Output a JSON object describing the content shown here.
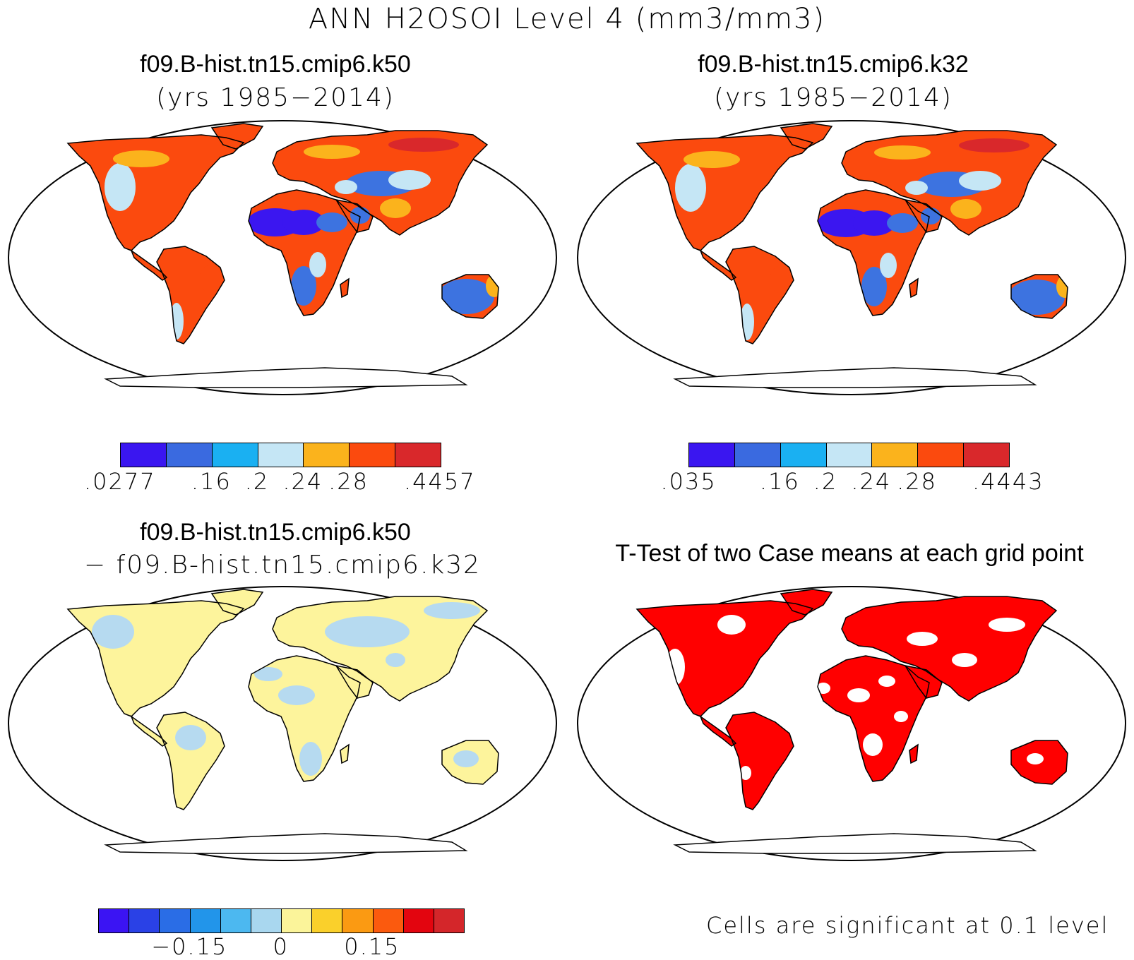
{
  "title": "ANN H2OSOI Level 4 (mm3/mm3)",
  "panels": {
    "top_left": {
      "title": "f09.B-hist.tn15.cmip6.k50",
      "subtitle": "(yrs 1985−2014)"
    },
    "top_right": {
      "title": "f09.B-hist.tn15.cmip6.k32",
      "subtitle": "(yrs 1985−2014)"
    },
    "bottom_left": {
      "title": "f09.B-hist.tn15.cmip6.k50",
      "subtitle": "− f09.B-hist.tn15.cmip6.k32"
    },
    "bottom_right": {
      "title": "T-Test of two Case means at each grid point",
      "note": "Cells are significant at 0.1 level"
    }
  },
  "colorbars": {
    "left": {
      "colors": [
        "#3a16f0",
        "#3a6ae0",
        "#1ab0f2",
        "#c5e6f5",
        "#fbb31c",
        "#fb4a0e",
        "#d9282b"
      ],
      "ticks": [
        ".0277",
        ".16",
        ".2",
        ".24",
        ".28",
        ".4457"
      ]
    },
    "right": {
      "colors": [
        "#3a16f0",
        "#3a6ae0",
        "#1ab0f2",
        "#c5e6f5",
        "#fbb31c",
        "#fb4a0e",
        "#d9282b"
      ],
      "ticks": [
        ".035",
        ".16",
        ".2",
        ".24",
        ".28",
        ".4443"
      ]
    },
    "diff": {
      "colors": [
        "#3b14f3",
        "#2a41e6",
        "#2a6de6",
        "#2295ea",
        "#4cb8f0",
        "#a9d7ef",
        "#fbf49a",
        "#fad02b",
        "#fb9a12",
        "#fb5a0e",
        "#e3050f",
        "#d4262a"
      ],
      "ticks": [
        "−0.15",
        "0",
        "0.15"
      ]
    }
  },
  "map_colors": {
    "dry": "#3b16f0",
    "mid_dry": "#3d73e0",
    "light": "#c5e6f5",
    "orange": "#fbb31c",
    "wet": "#fb4a0e",
    "very_wet": "#d9282b",
    "diff_pos": "#fdf49c",
    "diff_neg": "#b6daf0",
    "significant": "#ff0000"
  }
}
